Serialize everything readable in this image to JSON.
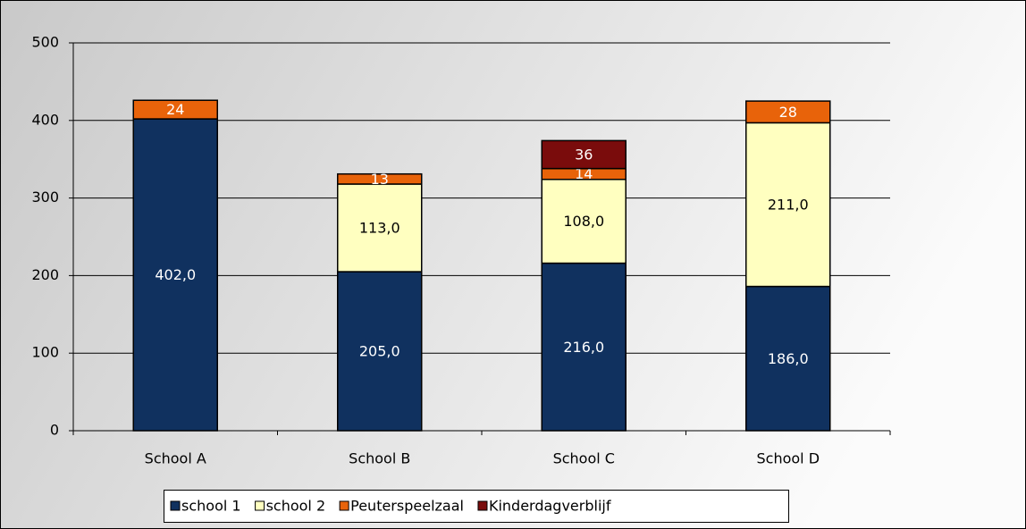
{
  "chart_data": {
    "type": "bar",
    "stacked": true,
    "categories": [
      "School A",
      "School B",
      "School C",
      "School D"
    ],
    "series": [
      {
        "name": "school 1",
        "color": "#10315f",
        "values": [
          402,
          205,
          216,
          186
        ],
        "value_labels": [
          "402,0",
          "205,0",
          "216,0",
          "186,0"
        ],
        "label_color": "#ffffff"
      },
      {
        "name": "school 2",
        "color": "#ffffc0",
        "values": [
          null,
          113,
          108,
          211
        ],
        "value_labels": [
          null,
          "113,0",
          "108,0",
          "211,0"
        ],
        "label_color": "#000000"
      },
      {
        "name": "Peuterspeelzaal",
        "color": "#e8630a",
        "values": [
          24,
          13,
          14,
          28
        ],
        "label_color": "#ffffff"
      },
      {
        "name": "Kinderdagverblijf",
        "color": "#7a0c0c",
        "values": [
          null,
          null,
          36,
          null
        ],
        "label_color": "#ffffff"
      }
    ],
    "ylim": [
      0,
      500
    ],
    "yticks": [
      0,
      100,
      200,
      300,
      400,
      500
    ],
    "grid": true,
    "legend": "bottom"
  }
}
